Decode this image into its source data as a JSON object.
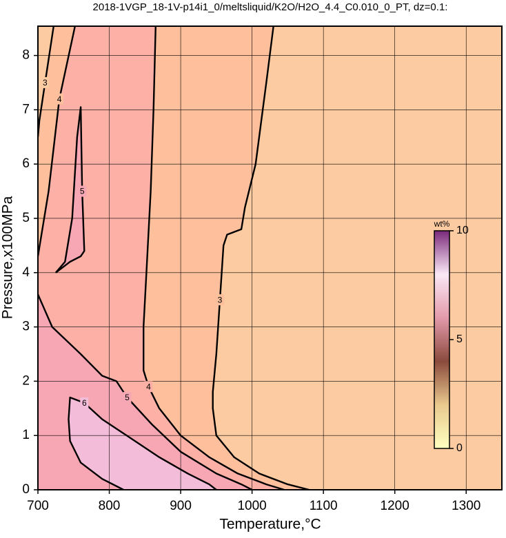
{
  "chart_data": {
    "type": "contour",
    "title": "2018-1VGP_18-1V-p14i1_0/meltsliquid/K2O/H2O_4.4_C0.010_0_PT, dz=0.1:",
    "x_label": "Temperature,°C",
    "y_label": "Pressure,x100MPa",
    "xlim": [
      700,
      1350
    ],
    "ylim": [
      0,
      8.54
    ],
    "xticks": [
      700,
      800,
      900,
      1000,
      1100,
      1200,
      1300
    ],
    "yticks": [
      0,
      1,
      2,
      3,
      4,
      5,
      6,
      7,
      8
    ],
    "grid": true,
    "background": "#fccba2",
    "contours": [
      {
        "level": 3,
        "fill": "#fdbf9c",
        "x": [
          1030,
          1020,
          1005,
          990,
          985,
          965,
          960,
          955,
          950,
          945,
          945,
          950,
          975,
          1010,
          1050,
          1080
        ],
        "y": [
          8.54,
          7.5,
          6,
          5.2,
          4.8,
          4.7,
          4.5,
          3.5,
          2.5,
          1.8,
          1.5,
          1.0,
          0.6,
          0.3,
          0.1,
          0
        ]
      },
      {
        "level": 4,
        "fill": "#fcb0a6",
        "x": [
          865,
          862,
          858,
          852,
          848,
          848,
          855,
          870,
          900,
          940,
          980,
          1020,
          1045
        ],
        "y": [
          8.54,
          7,
          5.5,
          4,
          3,
          2.2,
          1.9,
          1.5,
          1.0,
          0.6,
          0.3,
          0.1,
          0
        ]
      },
      {
        "level": 5,
        "fill": "#f7a7b4",
        "x": [
          700,
          720,
          760,
          790,
          810,
          825,
          860,
          900,
          950,
          985,
          1000
        ],
        "y": [
          3.6,
          3.0,
          2.5,
          2.1,
          2.0,
          1.7,
          1.2,
          0.7,
          0.3,
          0.1,
          0
        ]
      },
      {
        "level": 6,
        "fill": "#f3bcd8",
        "x": [
          820,
          790,
          760,
          745,
          743,
          745,
          765,
          790,
          830,
          870,
          910,
          940,
          950
        ],
        "y": [
          0,
          0.2,
          0.5,
          0.9,
          1.3,
          1.7,
          1.6,
          1.3,
          0.95,
          0.6,
          0.3,
          0.1,
          0
        ]
      },
      {
        "level": 5,
        "fill": "#f7a7b4",
        "x": [
          725,
          745,
          760,
          765,
          762,
          760,
          755,
          748,
          738,
          725
        ],
        "y": [
          4.0,
          4.2,
          4.3,
          4.4,
          5.5,
          7.05,
          6.5,
          5.0,
          4.2,
          4.0
        ]
      },
      {
        "level": 4,
        "fill": "#fdbf9c",
        "x": [
          752,
          730,
          715,
          700
        ],
        "y": [
          8.54,
          7.2,
          5.5,
          4.3
        ]
      },
      {
        "level": 3,
        "fill": "#fccba2",
        "x": [
          722,
          710,
          702,
          700
        ],
        "y": [
          8.54,
          7.5,
          6.8,
          6.5
        ]
      }
    ],
    "colorbar": {
      "label": "wt%",
      "lim": [
        0,
        10
      ],
      "ticks": [
        0,
        5,
        10
      ],
      "colors": [
        "#ffffc0",
        "#e9c98e",
        "#8a4a3c",
        "#e39aaa",
        "#fbe8f6",
        "#7a2a7a"
      ]
    }
  }
}
